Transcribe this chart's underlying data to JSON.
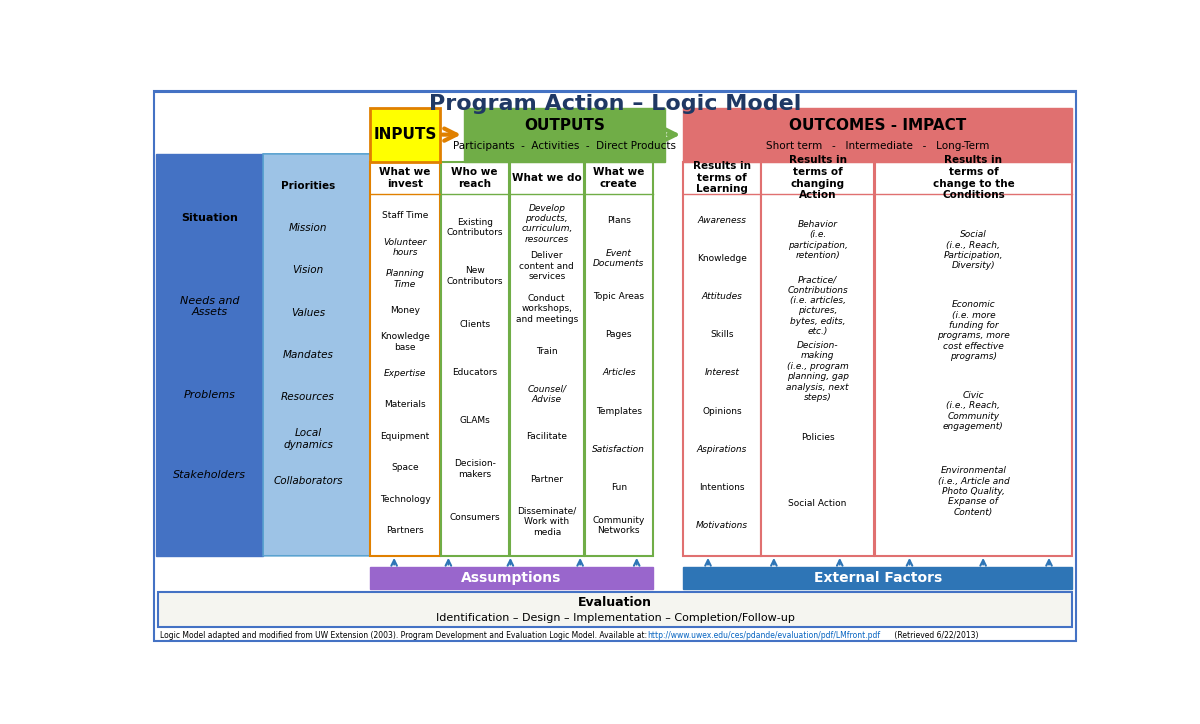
{
  "title": "Program Action – Logic Model",
  "title_fontsize": 16,
  "background_color": "#ffffff",
  "border_color": "#4472c4",
  "situation_box": {
    "items": [
      "Situation",
      "Needs and\nAssets",
      "Problems",
      "Stakeholders"
    ],
    "bg": "#4472c4",
    "text_color": "#000000"
  },
  "priorities_arrow": {
    "items": [
      "Priorities",
      "Mission",
      "Vision",
      "Values",
      "Mandates",
      "Resources",
      "Local\ndynamics",
      "Collaborators"
    ],
    "bg": "#9dc3e6",
    "text_color": "#000000"
  },
  "inputs_header": {
    "text": "INPUTS",
    "bg": "#ffff00",
    "border": "#e08000",
    "text_color": "#000000",
    "fontsize": 12
  },
  "outputs_header": {
    "text": "OUTPUTS",
    "subtext": "Participants  -  Activities  -  Direct Products",
    "bg": "#70ad47",
    "text_color": "#000000",
    "fontsize": 12
  },
  "outcomes_header": {
    "text": "OUTCOMES - IMPACT",
    "subtext": "Short term   -   Intermediate   -   Long-Term",
    "bg": "#e07070",
    "text_color": "#000000",
    "fontsize": 12
  },
  "inputs_col": {
    "header": "What we\ninvest",
    "items": [
      "Staff Time",
      "Volunteer\nhours",
      "Planning\nTime",
      "Money",
      "Knowledge\nbase",
      "Expertise",
      "Materials",
      "Equipment",
      "Space",
      "Technology",
      "Partners"
    ],
    "italic": [
      false,
      true,
      true,
      false,
      false,
      true,
      false,
      false,
      false,
      false,
      false
    ],
    "border": "#e08000"
  },
  "participants_col": {
    "header": "Who we\nreach",
    "items": [
      "Existing\nContributors",
      "New\nContributors",
      "Clients",
      "Educators",
      "GLAMs",
      "Decision-\nmakers",
      "Consumers"
    ],
    "italic": [
      false,
      false,
      false,
      false,
      false,
      false,
      false
    ],
    "border": "#70ad47"
  },
  "activities_col": {
    "header": "What we do",
    "items": [
      "Develop\nproducts,\ncurriculum,\nresources",
      "Deliver\ncontent and\nservices",
      "Conduct\nworkshops,\nand meetings",
      "Train",
      "Counsel/\nAdvise",
      "Facilitate",
      "Partner",
      "Disseminate/\nWork with\nmedia"
    ],
    "italic": [
      true,
      false,
      false,
      false,
      true,
      false,
      false,
      false
    ],
    "border": "#70ad47"
  },
  "direct_products_col": {
    "header": "What we\ncreate",
    "items": [
      "Plans",
      "Event\nDocuments",
      "Topic Areas",
      "Pages",
      "Articles",
      "Templates",
      "Satisfaction",
      "Fun",
      "Community\nNetworks"
    ],
    "italic": [
      false,
      true,
      false,
      false,
      true,
      false,
      true,
      false,
      false
    ],
    "border": "#70ad47"
  },
  "short_term_col": {
    "header": "Results in\nterms of\nLearning",
    "items": [
      "Awareness",
      "Knowledge",
      "Attitudes",
      "Skills",
      "Interest",
      "Opinions",
      "Aspirations",
      "Intentions",
      "Motivations"
    ],
    "italic": [
      true,
      false,
      true,
      false,
      true,
      false,
      true,
      false,
      true
    ],
    "border": "#e07070"
  },
  "intermediate_col": {
    "header": "Results in\nterms of\nchanging\nAction",
    "items": [
      "Behavior\n(i.e.\nparticipation,\nretention)",
      "Practice/\nContributions\n(i.e. articles,\npictures,\nbytes, edits,\netc.)",
      "Decision-\nmaking\n(i.e., program\nplanning, gap\nanalysis, next\nsteps)",
      "Policies",
      "Social Action"
    ],
    "italic": [
      true,
      true,
      true,
      false,
      false
    ],
    "border": "#e07070"
  },
  "long_term_col": {
    "header": "Results in\nterms of\nchange to the\nConditions",
    "items": [
      "Social\n(i.e., Reach,\nParticipation,\nDiversity)",
      "Economic\n(i.e. more\nfunding for\nprograms, more\ncost effective\nprograms)",
      "Civic\n(i.e., Reach,\nCommunity\nengagement)",
      "Environmental\n(i.e., Article and\nPhoto Quality,\nExpanse of\nContent)"
    ],
    "italic": [
      true,
      true,
      true,
      true
    ],
    "border": "#e07070"
  },
  "assumptions_box": {
    "text": "Assumptions",
    "bg": "#9966cc",
    "text_color": "#ffffff",
    "fontsize": 11
  },
  "external_factors_box": {
    "text": "External Factors",
    "bg": "#2e75b6",
    "text_color": "#ffffff",
    "fontsize": 11
  },
  "evaluation_box": {
    "title": "Evaluation",
    "subtitle": "Identification – Design – Implementation – Completion/Follow-up",
    "bg": "#f5f5f0",
    "border": "#4472c4",
    "text_color": "#000000"
  },
  "footer_text": "Logic Model adapted and modified from UW Extension (2003). Program Development and Evaluation Logic Model. Available at:",
  "footer_url": "http://www.uwex.edu/ces/pdande/evaluation/pdf/LMfront.pdf",
  "footer_suffix": " (Retrieved 6/22/2013)",
  "footer_border": "#4472c4"
}
